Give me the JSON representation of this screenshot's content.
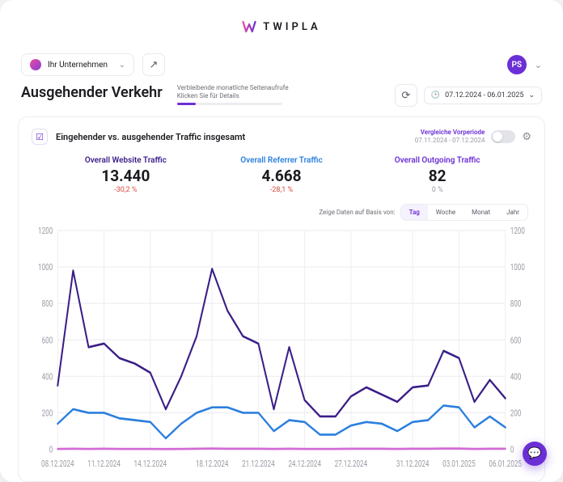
{
  "brand": {
    "name": "TWIPLA"
  },
  "topbar": {
    "company_label": "Ihr Unternehmen",
    "avatar_initials": "PS"
  },
  "page": {
    "title": "Ausgehender Verkehr",
    "remaining_line1": "Verbleibende monatliche Seitenaufrufe",
    "remaining_line2": "Klicken Sie für Details",
    "date_range": "07.12.2024 - 06.01.2025"
  },
  "card": {
    "title": "Eingehender vs. ausgehender Traffic insgesamt",
    "compare_label": "Vergleiche Vorperiode",
    "compare_range": "07.11.2024 - 07.12.2024",
    "compare_on": false,
    "basis_label": "Zeige Daten auf Basis von:",
    "basis_options": [
      "Tag",
      "Woche",
      "Monat",
      "Jahr"
    ],
    "basis_active": "Tag"
  },
  "metrics": [
    {
      "label": "Overall Website Traffic",
      "value": "13.440",
      "delta": "-30,2 %",
      "delta_kind": "neg"
    },
    {
      "label": "Overall Referrer Traffic",
      "value": "4.668",
      "delta": "-28,1 %",
      "delta_kind": "neg"
    },
    {
      "label": "Overall Outgoing Traffic",
      "value": "82",
      "delta": "0 %",
      "delta_kind": "zero"
    }
  ],
  "chart": {
    "type": "line",
    "ylim": [
      0,
      1200
    ],
    "ytick_step": 200,
    "x_labels": [
      "08.12.2024",
      "11.12.2024",
      "14.12.2024",
      "18.12.2024",
      "21.12.2024",
      "24.12.2024",
      "27.12.2024",
      "31.12.2024",
      "03.01.2025",
      "06.01.2025"
    ],
    "x_label_indices": [
      0,
      3,
      6,
      10,
      13,
      16,
      19,
      23,
      26,
      29
    ],
    "n_points": 30,
    "grid_color": "#efeff4",
    "axis_text_color": "#9a9aa4",
    "background_color": "#ffffff",
    "series": [
      {
        "name": "website",
        "color": "#3b1e87",
        "stroke_width": 2,
        "values": [
          350,
          980,
          560,
          580,
          500,
          470,
          420,
          220,
          400,
          620,
          990,
          760,
          620,
          580,
          220,
          560,
          270,
          180,
          180,
          290,
          340,
          300,
          260,
          340,
          350,
          540,
          500,
          260,
          380,
          280
        ]
      },
      {
        "name": "referrer",
        "color": "#2b7fde",
        "stroke_width": 2,
        "values": [
          140,
          220,
          200,
          200,
          170,
          160,
          150,
          60,
          140,
          200,
          230,
          230,
          200,
          200,
          100,
          160,
          150,
          80,
          80,
          130,
          150,
          140,
          100,
          150,
          160,
          240,
          230,
          120,
          180,
          120
        ]
      },
      {
        "name": "outgoing",
        "color": "#d36bd6",
        "stroke_width": 2,
        "values": [
          2,
          3,
          2,
          3,
          2,
          2,
          2,
          1,
          2,
          3,
          4,
          3,
          3,
          3,
          2,
          3,
          2,
          2,
          2,
          3,
          3,
          3,
          2,
          3,
          3,
          4,
          4,
          2,
          3,
          3
        ]
      }
    ]
  }
}
